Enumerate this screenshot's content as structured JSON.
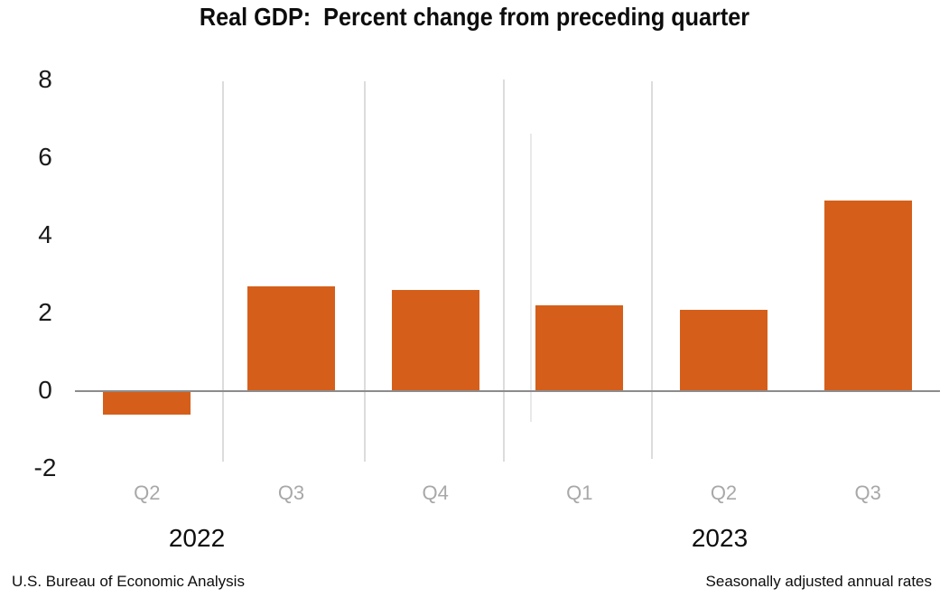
{
  "title": "Real GDP:  Percent change from preceding quarter",
  "footer": {
    "left": "U.S. Bureau of Economic Analysis",
    "right": "Seasonally adjusted annual rates"
  },
  "chart_data": {
    "type": "bar",
    "title": "Real GDP:  Percent change from preceding quarter",
    "categories": [
      "Q2",
      "Q3",
      "Q4",
      "Q1",
      "Q2",
      "Q3"
    ],
    "year_groups": [
      {
        "label": "2022",
        "count": 3
      },
      {
        "label": "2023",
        "count": 3
      }
    ],
    "values": [
      -0.6,
      2.7,
      2.6,
      2.2,
      2.1,
      4.9
    ],
    "series": [
      {
        "name": "Real GDP percent change",
        "values": [
          -0.6,
          2.7,
          2.6,
          2.2,
          2.1,
          4.9
        ]
      }
    ],
    "xlabel": "",
    "ylabel": "",
    "y_ticks": [
      8,
      6,
      4,
      2,
      0,
      -2
    ],
    "ylim": [
      -2,
      8
    ],
    "legend": "none",
    "grid": "vertical category separators",
    "bar_color": "#d55f1a",
    "quarter_label_color": "#a8a8a8",
    "zero_line_color": "#8c8c8c"
  }
}
